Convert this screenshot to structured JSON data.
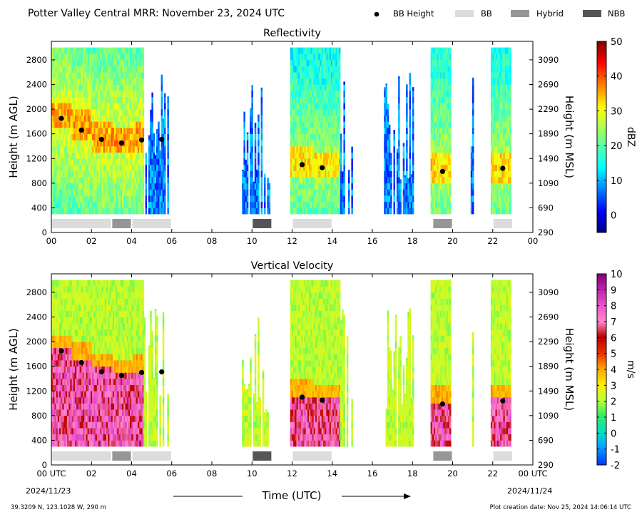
{
  "header": {
    "title": "Potter Valley Central MRR:  November 23, 2024 UTC",
    "legend": [
      {
        "label": "BB Height",
        "kind": "marker",
        "color": "#000000"
      },
      {
        "label": "BB",
        "kind": "box",
        "color": "#dcdcdc"
      },
      {
        "label": "Hybrid",
        "kind": "box",
        "color": "#969696"
      },
      {
        "label": "NBB",
        "kind": "box",
        "color": "#555555"
      }
    ]
  },
  "footer": {
    "location": "39.3209 N, 123.1028 W, 290 m",
    "creation": "Plot creation date: Nov 25, 2024 14:06:14 UTC",
    "x_axis_title": "Time (UTC)",
    "start_date": "2024/11/23",
    "end_date": "2024/11/24"
  },
  "chart_data": [
    {
      "type": "heatmap",
      "title": "Reflectivity",
      "ylabel_left": "Height (m AGL)",
      "ylabel_right": "Height (m MSL)",
      "xlabel": "",
      "xlim": [
        0,
        24
      ],
      "ylim": [
        0,
        3100
      ],
      "x_ticks": [
        "00",
        "02",
        "04",
        "06",
        "08",
        "10",
        "12",
        "14",
        "16",
        "18",
        "20",
        "22",
        "00"
      ],
      "y_ticks_left": [
        0,
        400,
        800,
        1200,
        1600,
        2000,
        2400,
        2800
      ],
      "y_ticks_right": [
        290,
        690,
        1090,
        1490,
        1890,
        2290,
        2690,
        3090
      ],
      "colorbar": {
        "label": "dBZ",
        "min": -5,
        "max": 50,
        "ticks": [
          0,
          10,
          20,
          30,
          40,
          50
        ],
        "palette": "jet"
      },
      "echo_periods": [
        {
          "start": 0.0,
          "end": 4.6,
          "strength": 0.55
        },
        {
          "start": 4.6,
          "end": 5.9,
          "strength": 0.2
        },
        {
          "start": 9.5,
          "end": 10.9,
          "strength": 0.12
        },
        {
          "start": 11.9,
          "end": 14.4,
          "strength": 0.38
        },
        {
          "start": 14.4,
          "end": 15.0,
          "strength": 0.1
        },
        {
          "start": 16.5,
          "end": 18.0,
          "strength": 0.1
        },
        {
          "start": 18.9,
          "end": 19.9,
          "strength": 0.42
        },
        {
          "start": 20.9,
          "end": 21.0,
          "strength": 0.1
        },
        {
          "start": 21.9,
          "end": 22.9,
          "strength": 0.42
        }
      ],
      "bb_heights": [
        {
          "time": 0.5,
          "height": 1850
        },
        {
          "time": 1.5,
          "height": 1660
        },
        {
          "time": 2.5,
          "height": 1510
        },
        {
          "time": 3.5,
          "height": 1450
        },
        {
          "time": 4.5,
          "height": 1500
        },
        {
          "time": 5.5,
          "height": 1510
        },
        {
          "time": 12.5,
          "height": 1100
        },
        {
          "time": 13.5,
          "height": 1050
        },
        {
          "time": 19.5,
          "height": 990
        },
        {
          "time": 22.5,
          "height": 1040
        }
      ],
      "bb_classification": [
        {
          "start": 0.0,
          "end": 3.0,
          "type": "BB"
        },
        {
          "start": 3.0,
          "end": 4.0,
          "type": "Hybrid"
        },
        {
          "start": 4.0,
          "end": 6.0,
          "type": "BB"
        },
        {
          "start": 10.0,
          "end": 11.0,
          "type": "NBB"
        },
        {
          "start": 12.0,
          "end": 14.0,
          "type": "BB"
        },
        {
          "start": 19.0,
          "end": 20.0,
          "type": "Hybrid"
        },
        {
          "start": 22.0,
          "end": 23.0,
          "type": "BB"
        }
      ]
    },
    {
      "type": "heatmap",
      "title": "Vertical Velocity",
      "ylabel_left": "Height (m AGL)",
      "ylabel_right": "Height (m MSL)",
      "xlabel": "Time (UTC)",
      "xlim": [
        0,
        24
      ],
      "ylim": [
        0,
        3100
      ],
      "x_ticks": [
        "00 UTC",
        "02",
        "04",
        "06",
        "08",
        "10",
        "12",
        "14",
        "16",
        "18",
        "20",
        "22",
        "00 UTC"
      ],
      "y_ticks_left": [
        0,
        400,
        800,
        1200,
        1600,
        2000,
        2400,
        2800
      ],
      "y_ticks_right": [
        290,
        690,
        1090,
        1490,
        1890,
        2290,
        2690,
        3090
      ],
      "colorbar": {
        "label": "m/s",
        "min": -2,
        "max": 10,
        "ticks": [
          -2,
          -1,
          0,
          1,
          2,
          3,
          4,
          5,
          6,
          7,
          8,
          9,
          10
        ],
        "palette": "velocity"
      },
      "echo_periods": [
        {
          "start": 0.0,
          "end": 4.6,
          "strength": 0.55
        },
        {
          "start": 4.6,
          "end": 5.9,
          "strength": 0.2
        },
        {
          "start": 9.5,
          "end": 10.9,
          "strength": 0.12
        },
        {
          "start": 11.9,
          "end": 14.4,
          "strength": 0.38
        },
        {
          "start": 14.4,
          "end": 15.0,
          "strength": 0.1
        },
        {
          "start": 16.5,
          "end": 18.0,
          "strength": 0.1
        },
        {
          "start": 18.9,
          "end": 19.9,
          "strength": 0.42
        },
        {
          "start": 20.9,
          "end": 21.0,
          "strength": 0.1
        },
        {
          "start": 21.9,
          "end": 22.9,
          "strength": 0.42
        }
      ],
      "bb_heights": [
        {
          "time": 0.5,
          "height": 1850
        },
        {
          "time": 1.5,
          "height": 1660
        },
        {
          "time": 2.5,
          "height": 1510
        },
        {
          "time": 3.5,
          "height": 1450
        },
        {
          "time": 4.5,
          "height": 1500
        },
        {
          "time": 5.5,
          "height": 1510
        },
        {
          "time": 12.5,
          "height": 1100
        },
        {
          "time": 13.5,
          "height": 1050
        },
        {
          "time": 19.5,
          "height": 990
        },
        {
          "time": 22.5,
          "height": 1040
        }
      ],
      "bb_classification": [
        {
          "start": 0.0,
          "end": 3.0,
          "type": "BB"
        },
        {
          "start": 3.0,
          "end": 4.0,
          "type": "Hybrid"
        },
        {
          "start": 4.0,
          "end": 6.0,
          "type": "BB"
        },
        {
          "start": 10.0,
          "end": 11.0,
          "type": "NBB"
        },
        {
          "start": 12.0,
          "end": 14.0,
          "type": "BB"
        },
        {
          "start": 19.0,
          "end": 20.0,
          "type": "Hybrid"
        },
        {
          "start": 22.0,
          "end": 23.0,
          "type": "BB"
        }
      ]
    }
  ]
}
